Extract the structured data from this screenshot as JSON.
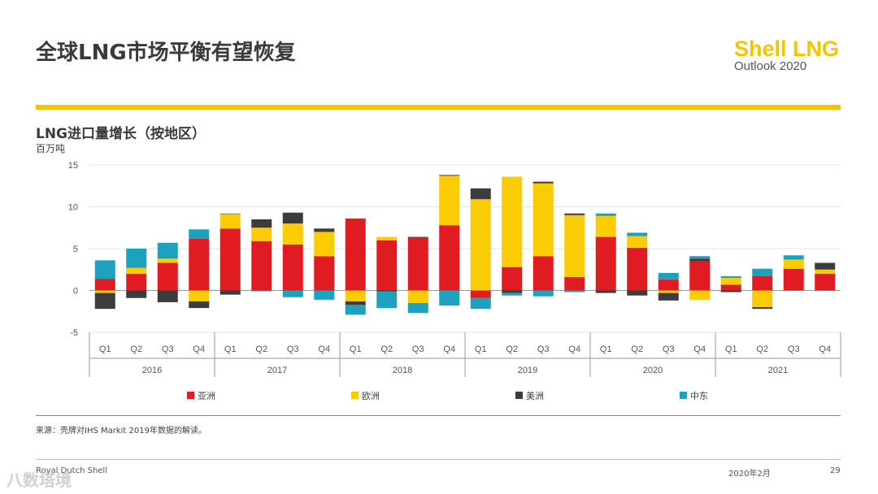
{
  "page": {
    "title": "全球LNG市场平衡有望恢复",
    "brand_name": "Shell LNG",
    "brand_sub": "Outlook 2020",
    "source": "来源：壳牌对IHS Markit 2019年数据的解读。",
    "footer_left": "Royal Dutch Shell",
    "footer_date": "2020年2月",
    "footer_page": "29",
    "watermark": "八数塔境"
  },
  "colors": {
    "brand": "#f5c400",
    "asia": "#e01b22",
    "europe": "#fbcc05",
    "americas": "#3c3c3c",
    "middle_east": "#1ca1be"
  },
  "chart_data": {
    "type": "bar",
    "stacked": true,
    "title": "LNG进口量增长（按地区）",
    "ylabel": "百万吨",
    "ylim": [
      -5,
      15
    ],
    "yticks": [
      -5,
      0,
      5,
      10,
      15
    ],
    "grid": true,
    "legend_position": "bottom",
    "categories": [
      "Q1",
      "Q2",
      "Q3",
      "Q4",
      "Q1",
      "Q2",
      "Q3",
      "Q4",
      "Q1",
      "Q2",
      "Q3",
      "Q4",
      "Q1",
      "Q2",
      "Q3",
      "Q4",
      "Q1",
      "Q2",
      "Q3",
      "Q4",
      "Q1",
      "Q2",
      "Q3",
      "Q4"
    ],
    "year_groups": [
      {
        "label": "2016",
        "count": 4
      },
      {
        "label": "2017",
        "count": 4
      },
      {
        "label": "2018",
        "count": 4
      },
      {
        "label": "2019",
        "count": 4
      },
      {
        "label": "2020",
        "count": 4
      },
      {
        "label": "2021",
        "count": 4
      }
    ],
    "series": [
      {
        "name": "亚洲",
        "color_key": "asia",
        "values": [
          1.4,
          2.0,
          3.3,
          6.2,
          7.4,
          5.9,
          5.5,
          4.1,
          8.6,
          6.0,
          6.3,
          7.8,
          -0.9,
          2.8,
          4.1,
          1.6,
          6.4,
          5.1,
          1.3,
          3.5,
          0.7,
          1.7,
          2.6,
          2.0
        ]
      },
      {
        "name": "欧洲",
        "color_key": "europe",
        "values": [
          -0.3,
          0.7,
          0.5,
          -1.3,
          1.7,
          1.6,
          2.5,
          2.9,
          -1.3,
          0.4,
          -1.5,
          5.9,
          10.9,
          10.8,
          8.7,
          7.4,
          2.5,
          1.4,
          -0.3,
          -1.1,
          0.8,
          -2.0,
          1.1,
          0.5
        ]
      },
      {
        "name": "美洲",
        "color_key": "americas",
        "values": [
          -1.9,
          -0.9,
          -1.4,
          -0.8,
          -0.5,
          1.0,
          1.3,
          0.4,
          -0.4,
          -0.1,
          0.1,
          0.1,
          1.3,
          -0.3,
          0.2,
          0.2,
          -0.3,
          -0.6,
          -0.9,
          0.3,
          -0.2,
          -0.2,
          0.0,
          0.8
        ]
      },
      {
        "name": "中东",
        "color_key": "middle_east",
        "values": [
          2.2,
          2.3,
          1.9,
          1.1,
          0.1,
          -0.1,
          -0.8,
          -1.1,
          -1.2,
          -2.0,
          -1.2,
          -1.8,
          -1.3,
          -0.3,
          -0.7,
          -0.2,
          0.3,
          0.4,
          0.8,
          0.3,
          0.2,
          0.9,
          0.5,
          0.0
        ]
      }
    ]
  }
}
